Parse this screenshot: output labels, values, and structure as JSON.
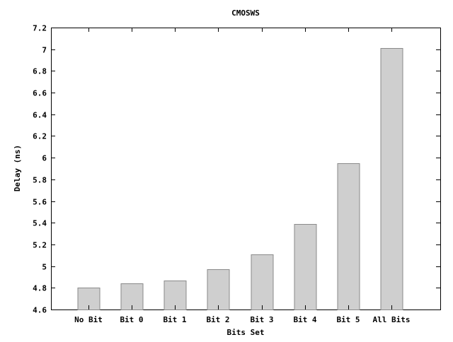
{
  "chart_data": {
    "type": "bar",
    "title": "CMOSWS",
    "xlabel": "Bits Set",
    "ylabel": "Delay (ns)",
    "categories": [
      "No Bit",
      "Bit 0",
      "Bit 1",
      "Bit 2",
      "Bit 3",
      "Bit 4",
      "Bit 5",
      "All Bits"
    ],
    "values": [
      4.8,
      4.84,
      4.87,
      4.97,
      5.11,
      5.39,
      5.95,
      7.01
    ],
    "ylim": [
      4.6,
      7.2
    ],
    "yticks": [
      4.6,
      4.8,
      5,
      5.2,
      5.4,
      5.6,
      5.8,
      6,
      6.2,
      6.4,
      6.6,
      6.8,
      7,
      7.2
    ],
    "ytick_labels": [
      "4.6",
      "4.8",
      "5",
      "5.2",
      "5.4",
      "5.6",
      "5.8",
      "6",
      "6.2",
      "6.4",
      "6.6",
      "6.8",
      "7",
      "7.2"
    ],
    "grid": false,
    "legend": "none",
    "colors": {
      "bar_fill": "#cfcfcf",
      "bar_stroke": "#8a8a8a",
      "axis": "#000000",
      "background": "#ffffff"
    }
  }
}
